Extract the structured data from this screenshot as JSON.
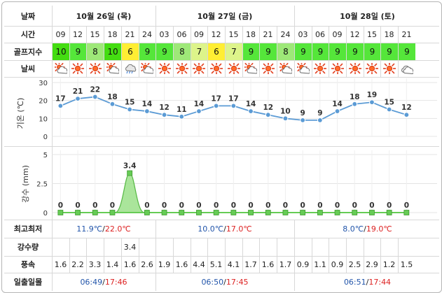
{
  "labels": {
    "date": "날짜",
    "time": "시간",
    "golf_index": "골프지수",
    "weather": "날씨",
    "max_min": "최고최저",
    "precip": "강수량",
    "wind": "풍속",
    "sunrise_sunset": "일출일몰"
  },
  "days": [
    {
      "label": "10월 26일 (목)",
      "temp_low": "11.9℃",
      "sep": "/",
      "temp_high": "22.0℃",
      "sunrise": "06:49",
      "sunset": "17:46"
    },
    {
      "label": "10월 27일 (금)",
      "temp_low": "10.0℃",
      "sep": "/",
      "temp_high": "17.0℃",
      "sunrise": "06:50",
      "sunset": "17:45"
    },
    {
      "label": "10월 28일 (토)",
      "temp_low": "8.0℃",
      "sep": "/",
      "temp_high": "19.0℃",
      "sunrise": "06:51",
      "sunset": "17:44"
    }
  ],
  "hours": [
    "09",
    "12",
    "15",
    "18",
    "21",
    "24",
    "03",
    "06",
    "09",
    "12",
    "15",
    "18",
    "21",
    "24",
    "03",
    "06",
    "09",
    "12",
    "15",
    "18",
    "21"
  ],
  "golf_index": [
    "10",
    "9",
    "8",
    "10",
    "6",
    "9",
    "9",
    "8",
    "7",
    "6",
    "7",
    "9",
    "9",
    "8",
    "9",
    "9",
    "9",
    "9",
    "9",
    "9",
    "9"
  ],
  "golf_colors": {
    "10": "#44dd11",
    "9": "#55e63a",
    "8": "#9ee878",
    "7": "#ddf48a",
    "6": "#ffee33"
  },
  "weather_icons": [
    "partly-cloudy",
    "sunny",
    "sunny",
    "partly-cloudy",
    "rain",
    "partly-cloudy",
    "sunny",
    "sunny",
    "sunny",
    "sunny",
    "sunny",
    "partly-cloudy",
    "sunny",
    "partly-cloudy",
    "partly-cloudy",
    "sunny",
    "sunny",
    "sunny",
    "sunny",
    "sunny",
    "cloudy"
  ],
  "precip_row": [
    "",
    "",
    "",
    "",
    "3.4",
    "",
    "",
    "",
    "",
    "",
    "",
    "",
    "",
    "",
    "",
    "",
    "",
    "",
    "",
    "",
    ""
  ],
  "wind": [
    "1.6",
    "2.2",
    "3.3",
    "1.4",
    "1.6",
    "2.6",
    "1.9",
    "1.6",
    "4.4",
    "5.1",
    "4.1",
    "1.7",
    "1.6",
    "1.7",
    "0.9",
    "1.1",
    "0.9",
    "2.5",
    "2.9",
    "1.2",
    "1.5"
  ],
  "chart_data": [
    {
      "type": "line",
      "ylabel": "기온 (℃)",
      "ylim": [
        0,
        30
      ],
      "yticks": [
        "30",
        "20",
        "10",
        "0"
      ],
      "x": [
        "09",
        "12",
        "15",
        "18",
        "21",
        "24",
        "03",
        "06",
        "09",
        "12",
        "15",
        "18",
        "21",
        "24",
        "03",
        "06",
        "09",
        "12",
        "15",
        "18",
        "21"
      ],
      "values": [
        17,
        21,
        22,
        18,
        15,
        14,
        12,
        11,
        14,
        17,
        17,
        14,
        12,
        10,
        9,
        9,
        14,
        18,
        19,
        15,
        12
      ],
      "color": "#5b9bd5"
    },
    {
      "type": "area",
      "ylabel": "강수 (mm)",
      "ylim": [
        0,
        5
      ],
      "yticks": [
        "5",
        "2.5",
        "0"
      ],
      "x": [
        "09",
        "12",
        "15",
        "18",
        "21",
        "24",
        "03",
        "06",
        "09",
        "12",
        "15",
        "18",
        "21",
        "24",
        "03",
        "06",
        "09",
        "12",
        "15",
        "18",
        "21"
      ],
      "values": [
        0,
        0,
        0,
        0,
        3.4,
        0,
        0,
        0,
        0,
        0,
        0,
        0,
        0,
        0,
        0,
        0,
        0,
        0,
        0,
        0,
        0
      ],
      "color": "#66cc55"
    }
  ]
}
